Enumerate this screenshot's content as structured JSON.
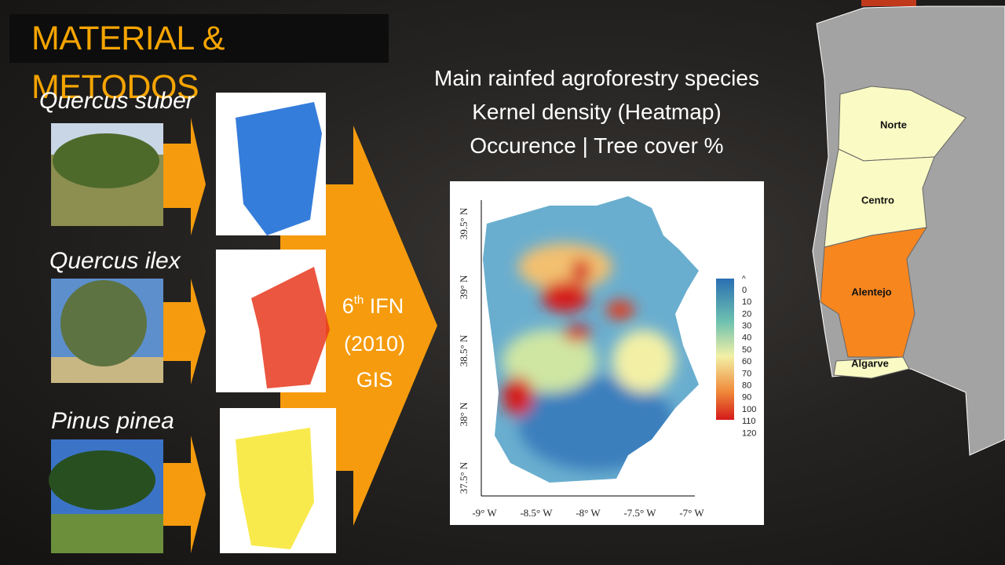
{
  "title": "MATERIAL & METODOS",
  "species": [
    {
      "name": "Quercus suber"
    },
    {
      "name": "Quercus ilex"
    },
    {
      "name": "Pinus pinea"
    }
  ],
  "process": {
    "number": "6",
    "superscript": "th",
    "line1": "IFN",
    "line2": "(2010)",
    "line3": "GIS"
  },
  "subtitle": [
    "Main rainfed agroforestry species",
    "Kernel density (Heatmap)",
    "Occurence | Tree cover %"
  ],
  "heatmap": {
    "yticks": [
      "39.5° N",
      "39° N",
      "38.5° N",
      "38° N",
      "37.5° N"
    ],
    "xticks": [
      "-9° W",
      "-8.5° W",
      "-8° W",
      "-7.5° W",
      "-7° W"
    ],
    "legend": {
      "marker": "^",
      "labels": [
        "0",
        "10",
        "20",
        "30",
        "40",
        "50",
        "60",
        "70",
        "80",
        "90",
        "100",
        "110",
        "120"
      ]
    }
  },
  "regions": [
    "Norte",
    "Centro",
    "Alentejo",
    "Algarve"
  ]
}
